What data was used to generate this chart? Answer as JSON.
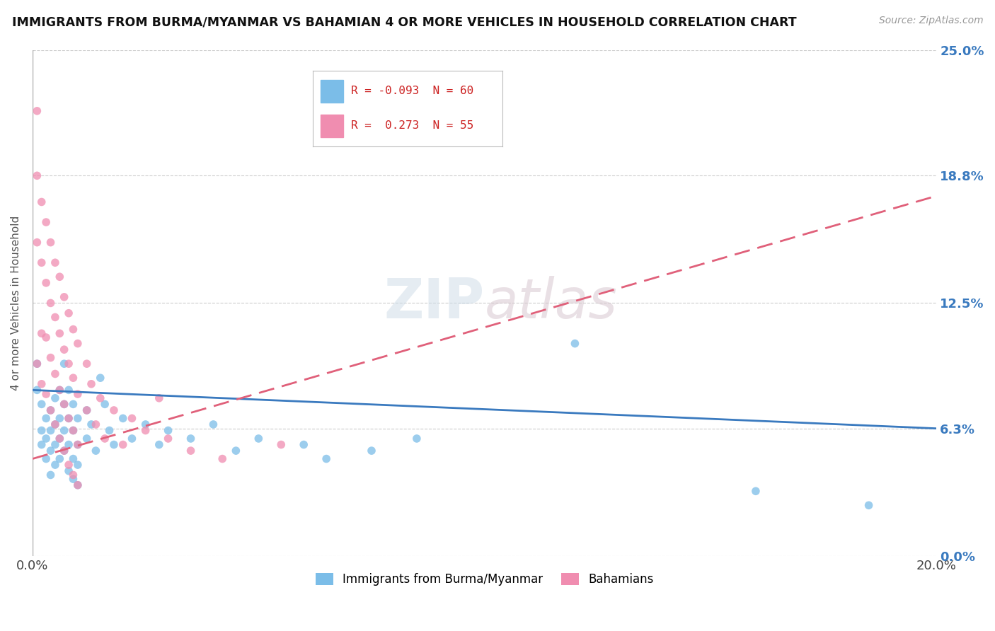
{
  "title": "IMMIGRANTS FROM BURMA/MYANMAR VS BAHAMIAN 4 OR MORE VEHICLES IN HOUSEHOLD CORRELATION CHART",
  "source": "Source: ZipAtlas.com",
  "ylabel": "4 or more Vehicles in Household",
  "legend1_label": "Immigrants from Burma/Myanmar",
  "legend2_label": "Bahamians",
  "R1": -0.093,
  "N1": 60,
  "R2": 0.273,
  "N2": 55,
  "color1": "#7bbde8",
  "color2": "#f08db0",
  "trend1_color": "#3a7abf",
  "trend2_color": "#e0607a",
  "xlim": [
    0.0,
    0.2
  ],
  "ylim": [
    0.0,
    0.25
  ],
  "ytick_labels": [
    "0.0%",
    "6.3%",
    "12.5%",
    "18.8%",
    "25.0%"
  ],
  "ytick_values": [
    0.0,
    0.063,
    0.125,
    0.188,
    0.25
  ],
  "blue_trend_start": 0.082,
  "blue_trend_end": 0.063,
  "pink_trend_start": 0.048,
  "pink_trend_end": 0.178,
  "blue_dots": [
    [
      0.001,
      0.095
    ],
    [
      0.001,
      0.082
    ],
    [
      0.002,
      0.075
    ],
    [
      0.002,
      0.062
    ],
    [
      0.002,
      0.055
    ],
    [
      0.003,
      0.068
    ],
    [
      0.003,
      0.058
    ],
    [
      0.003,
      0.048
    ],
    [
      0.004,
      0.072
    ],
    [
      0.004,
      0.062
    ],
    [
      0.004,
      0.052
    ],
    [
      0.004,
      0.04
    ],
    [
      0.005,
      0.078
    ],
    [
      0.005,
      0.065
    ],
    [
      0.005,
      0.055
    ],
    [
      0.005,
      0.045
    ],
    [
      0.006,
      0.082
    ],
    [
      0.006,
      0.068
    ],
    [
      0.006,
      0.058
    ],
    [
      0.006,
      0.048
    ],
    [
      0.007,
      0.095
    ],
    [
      0.007,
      0.075
    ],
    [
      0.007,
      0.062
    ],
    [
      0.007,
      0.052
    ],
    [
      0.008,
      0.082
    ],
    [
      0.008,
      0.068
    ],
    [
      0.008,
      0.055
    ],
    [
      0.008,
      0.042
    ],
    [
      0.009,
      0.075
    ],
    [
      0.009,
      0.062
    ],
    [
      0.009,
      0.048
    ],
    [
      0.009,
      0.038
    ],
    [
      0.01,
      0.068
    ],
    [
      0.01,
      0.055
    ],
    [
      0.01,
      0.045
    ],
    [
      0.01,
      0.035
    ],
    [
      0.012,
      0.072
    ],
    [
      0.012,
      0.058
    ],
    [
      0.013,
      0.065
    ],
    [
      0.014,
      0.052
    ],
    [
      0.015,
      0.088
    ],
    [
      0.016,
      0.075
    ],
    [
      0.017,
      0.062
    ],
    [
      0.018,
      0.055
    ],
    [
      0.02,
      0.068
    ],
    [
      0.022,
      0.058
    ],
    [
      0.025,
      0.065
    ],
    [
      0.028,
      0.055
    ],
    [
      0.03,
      0.062
    ],
    [
      0.035,
      0.058
    ],
    [
      0.04,
      0.065
    ],
    [
      0.045,
      0.052
    ],
    [
      0.05,
      0.058
    ],
    [
      0.06,
      0.055
    ],
    [
      0.065,
      0.048
    ],
    [
      0.075,
      0.052
    ],
    [
      0.085,
      0.058
    ],
    [
      0.12,
      0.105
    ],
    [
      0.16,
      0.032
    ],
    [
      0.185,
      0.025
    ]
  ],
  "pink_dots": [
    [
      0.001,
      0.22
    ],
    [
      0.001,
      0.188
    ],
    [
      0.001,
      0.155
    ],
    [
      0.001,
      0.095
    ],
    [
      0.002,
      0.175
    ],
    [
      0.002,
      0.145
    ],
    [
      0.002,
      0.11
    ],
    [
      0.002,
      0.085
    ],
    [
      0.003,
      0.165
    ],
    [
      0.003,
      0.135
    ],
    [
      0.003,
      0.108
    ],
    [
      0.003,
      0.08
    ],
    [
      0.004,
      0.155
    ],
    [
      0.004,
      0.125
    ],
    [
      0.004,
      0.098
    ],
    [
      0.004,
      0.072
    ],
    [
      0.005,
      0.145
    ],
    [
      0.005,
      0.118
    ],
    [
      0.005,
      0.09
    ],
    [
      0.005,
      0.065
    ],
    [
      0.006,
      0.138
    ],
    [
      0.006,
      0.11
    ],
    [
      0.006,
      0.082
    ],
    [
      0.006,
      0.058
    ],
    [
      0.007,
      0.128
    ],
    [
      0.007,
      0.102
    ],
    [
      0.007,
      0.075
    ],
    [
      0.007,
      0.052
    ],
    [
      0.008,
      0.12
    ],
    [
      0.008,
      0.095
    ],
    [
      0.008,
      0.068
    ],
    [
      0.008,
      0.045
    ],
    [
      0.009,
      0.112
    ],
    [
      0.009,
      0.088
    ],
    [
      0.009,
      0.062
    ],
    [
      0.009,
      0.04
    ],
    [
      0.01,
      0.105
    ],
    [
      0.01,
      0.08
    ],
    [
      0.01,
      0.055
    ],
    [
      0.01,
      0.035
    ],
    [
      0.012,
      0.095
    ],
    [
      0.012,
      0.072
    ],
    [
      0.013,
      0.085
    ],
    [
      0.014,
      0.065
    ],
    [
      0.015,
      0.078
    ],
    [
      0.016,
      0.058
    ],
    [
      0.018,
      0.072
    ],
    [
      0.02,
      0.055
    ],
    [
      0.022,
      0.068
    ],
    [
      0.025,
      0.062
    ],
    [
      0.028,
      0.078
    ],
    [
      0.03,
      0.058
    ],
    [
      0.035,
      0.052
    ],
    [
      0.042,
      0.048
    ],
    [
      0.055,
      0.055
    ]
  ]
}
